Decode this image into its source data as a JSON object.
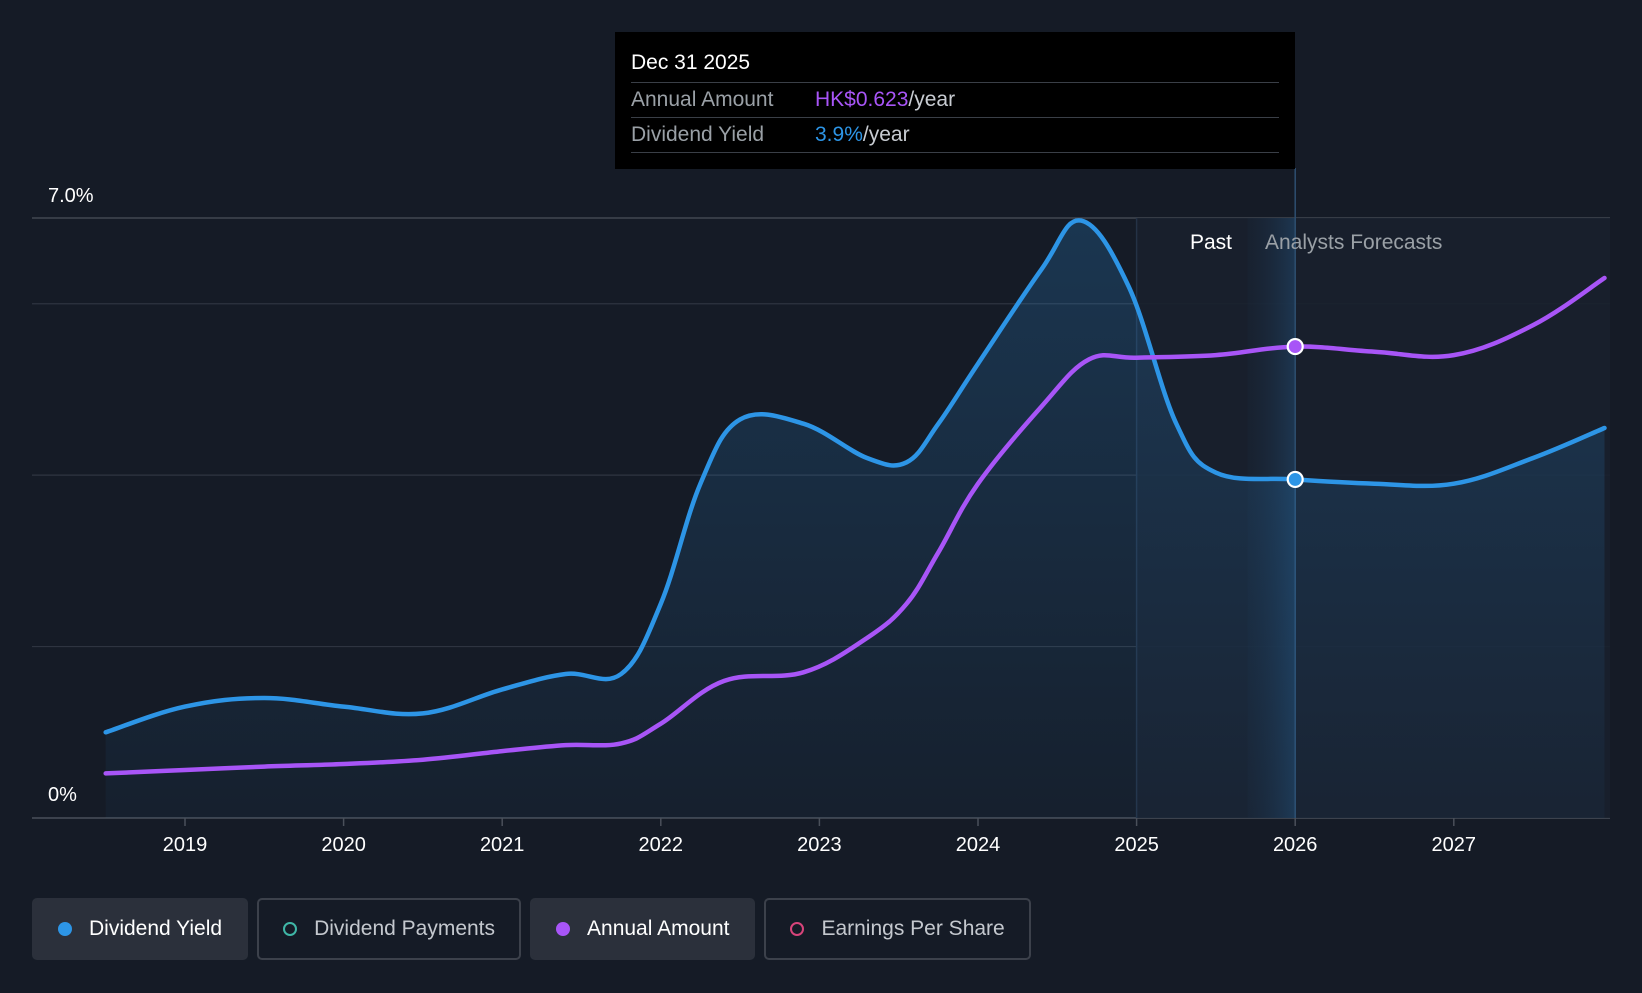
{
  "chart_data": {
    "type": "line",
    "y_axis": {
      "top_label": "7.0%",
      "bottom_label": "0%",
      "ylim": [
        0,
        7.0
      ]
    },
    "x_axis": {
      "tick_labels": [
        "2019",
        "2020",
        "2021",
        "2022",
        "2023",
        "2024",
        "2025",
        "2026",
        "2027"
      ],
      "xlim": [
        2018.4,
        2027.95
      ]
    },
    "region_labels": {
      "past": "Past",
      "forecast": "Analysts Forecasts"
    },
    "tooltip": {
      "date": "Dec 31 2025",
      "rows": [
        {
          "label": "Annual Amount",
          "value": "HK$0.623",
          "unit": "/year",
          "color": "#a855f7"
        },
        {
          "label": "Dividend Yield",
          "value": "3.9%",
          "unit": "/year",
          "color": "#2d95e6"
        }
      ]
    },
    "series": [
      {
        "name": "Dividend Yield",
        "color": "#2d95e6",
        "points": [
          [
            2018.5,
            1.0
          ],
          [
            2019.0,
            1.3
          ],
          [
            2019.5,
            1.4
          ],
          [
            2020.0,
            1.3
          ],
          [
            2020.5,
            1.22
          ],
          [
            2021.0,
            1.5
          ],
          [
            2021.4,
            1.68
          ],
          [
            2021.75,
            1.68
          ],
          [
            2022.0,
            2.5
          ],
          [
            2022.25,
            3.9
          ],
          [
            2022.5,
            4.65
          ],
          [
            2022.9,
            4.6
          ],
          [
            2023.3,
            4.2
          ],
          [
            2023.55,
            4.15
          ],
          [
            2023.75,
            4.6
          ],
          [
            2024.0,
            5.3
          ],
          [
            2024.4,
            6.4
          ],
          [
            2024.65,
            6.97
          ],
          [
            2024.95,
            6.2
          ],
          [
            2025.25,
            4.6
          ],
          [
            2025.5,
            4.03
          ],
          [
            2026.0,
            3.95
          ],
          [
            2026.5,
            3.9
          ],
          [
            2027.0,
            3.9
          ],
          [
            2027.5,
            4.2
          ],
          [
            2027.95,
            4.55
          ]
        ]
      },
      {
        "name": "Annual Amount",
        "color": "#a855f7",
        "points": [
          [
            2018.5,
            0.52
          ],
          [
            2019.0,
            0.56
          ],
          [
            2019.5,
            0.6
          ],
          [
            2020.0,
            0.63
          ],
          [
            2020.5,
            0.68
          ],
          [
            2021.0,
            0.78
          ],
          [
            2021.4,
            0.85
          ],
          [
            2021.75,
            0.87
          ],
          [
            2022.0,
            1.1
          ],
          [
            2022.4,
            1.6
          ],
          [
            2022.9,
            1.7
          ],
          [
            2023.3,
            2.1
          ],
          [
            2023.55,
            2.5
          ],
          [
            2023.75,
            3.1
          ],
          [
            2024.0,
            3.9
          ],
          [
            2024.4,
            4.8
          ],
          [
            2024.7,
            5.35
          ],
          [
            2025.0,
            5.37
          ],
          [
            2025.5,
            5.4
          ],
          [
            2026.0,
            5.5
          ],
          [
            2026.5,
            5.44
          ],
          [
            2027.0,
            5.4
          ],
          [
            2027.5,
            5.75
          ],
          [
            2027.95,
            6.3
          ]
        ]
      }
    ],
    "highlight_points": [
      {
        "series": "Annual Amount",
        "x": 2026.0,
        "y": 5.5
      },
      {
        "series": "Dividend Yield",
        "x": 2026.0,
        "y": 3.95
      }
    ],
    "forecast_start": 2025.0,
    "cursor_x": 2026.0
  },
  "legend": [
    {
      "label": "Dividend Yield",
      "color": "#2d95e6",
      "active": true
    },
    {
      "label": "Dividend Payments",
      "color": "#3fb6a6",
      "active": false
    },
    {
      "label": "Annual Amount",
      "color": "#a855f7",
      "active": true
    },
    {
      "label": "Earnings Per Share",
      "color": "#d7447a",
      "active": false
    }
  ]
}
